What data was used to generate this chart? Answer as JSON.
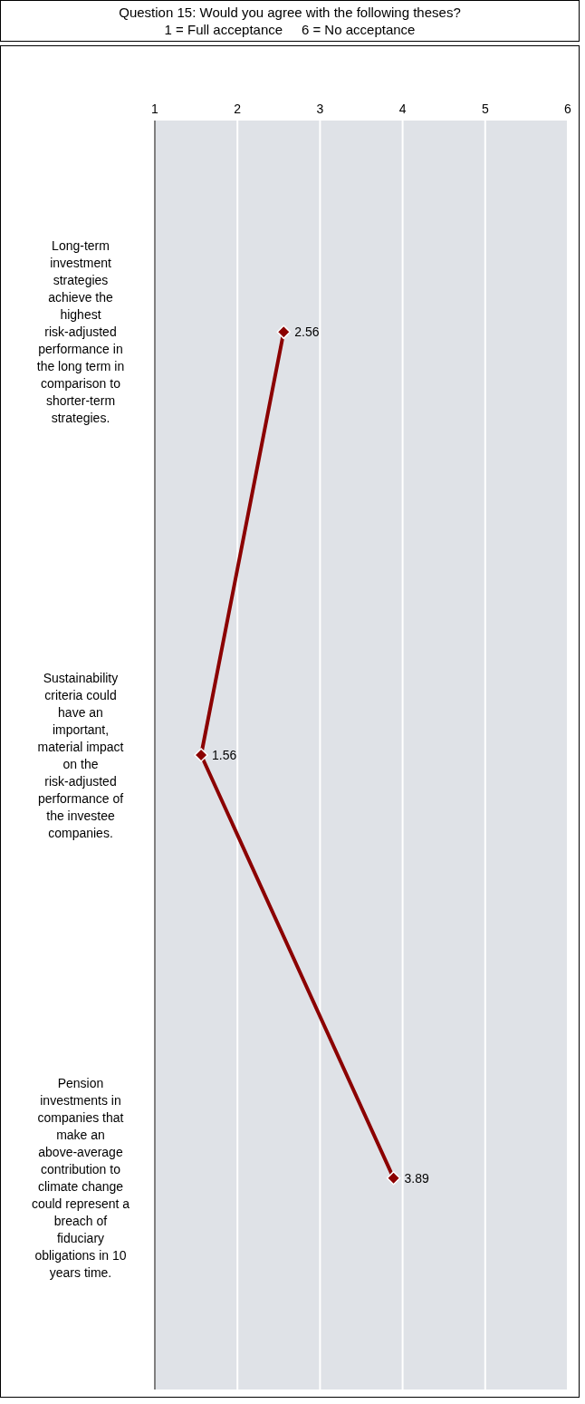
{
  "chart_data": {
    "type": "line",
    "orientation": "horizontal",
    "title": "Question 15: Would you agree with the following theses?",
    "subtitle": "1 = Full acceptance     6 = No acceptance",
    "categories": [
      "Long-term investment strategies achieve the highest risk-adjusted performance in the long term in comparison to shorter-term strategies.",
      "Sustainability criteria could have an important, material impact on the risk-adjusted performance of the investee companies.",
      "Pension investments in companies that make an above-average contribution to climate change could represent a breach of fiduciary obligations in 10 years time."
    ],
    "series": [
      {
        "color": "#8b0000",
        "values": [
          2.56,
          1.56,
          3.89
        ]
      }
    ],
    "xlim": [
      1,
      6
    ],
    "xticks": [
      1,
      2,
      3,
      4,
      5,
      6
    ],
    "grid": "x",
    "marker": "diamond",
    "line_style": "solid",
    "data_labels": true,
    "legend": false
  }
}
